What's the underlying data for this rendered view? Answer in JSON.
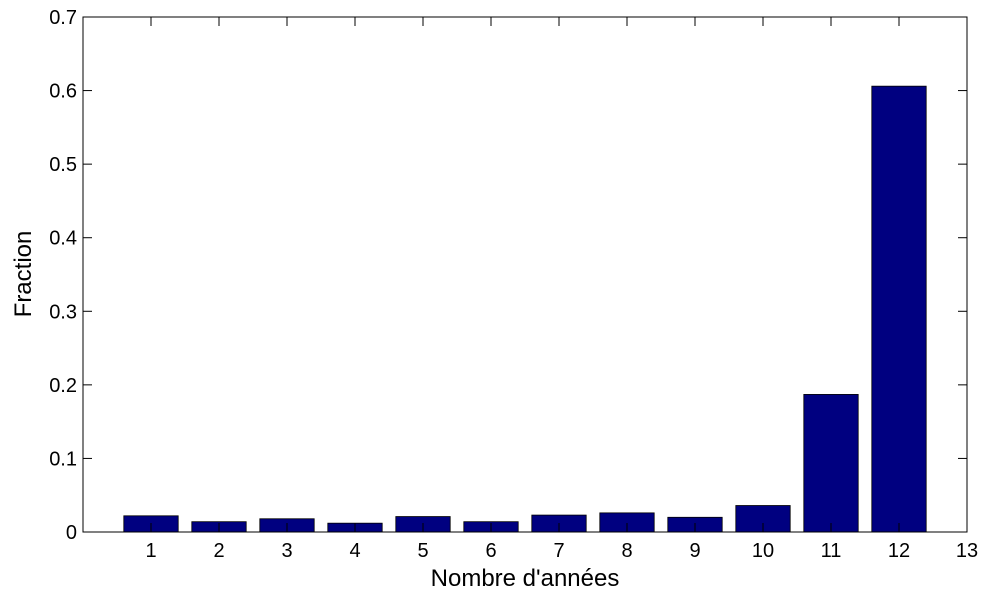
{
  "chart_data": {
    "type": "bar",
    "title": "",
    "xlabel": "Nombre d'années",
    "ylabel": "Fraction",
    "categories": [
      "1",
      "2",
      "3",
      "4",
      "5",
      "6",
      "7",
      "8",
      "9",
      "10",
      "11",
      "12"
    ],
    "x": [
      1,
      2,
      3,
      4,
      5,
      6,
      7,
      8,
      9,
      10,
      11,
      12
    ],
    "values": [
      0.022,
      0.014,
      0.018,
      0.012,
      0.021,
      0.014,
      0.023,
      0.026,
      0.02,
      0.036,
      0.187,
      0.606
    ],
    "xlim": [
      0,
      13
    ],
    "ylim": [
      0,
      0.7
    ],
    "xticks": [
      1,
      2,
      3,
      4,
      5,
      6,
      7,
      8,
      9,
      10,
      11,
      12,
      13
    ],
    "xtick_labels": [
      "1",
      "2",
      "3",
      "4",
      "5",
      "6",
      "7",
      "8",
      "9",
      "10",
      "11",
      "12",
      "13"
    ],
    "yticks": [
      0,
      0.1,
      0.2,
      0.3,
      0.4,
      0.5,
      0.6,
      0.7
    ],
    "ytick_labels": [
      "0",
      "0.1",
      "0.2",
      "0.3",
      "0.4",
      "0.5",
      "0.6",
      "0.7"
    ],
    "bar_color": "#000080",
    "bar_width_fraction": 0.8,
    "grid": false,
    "legend": "none"
  }
}
